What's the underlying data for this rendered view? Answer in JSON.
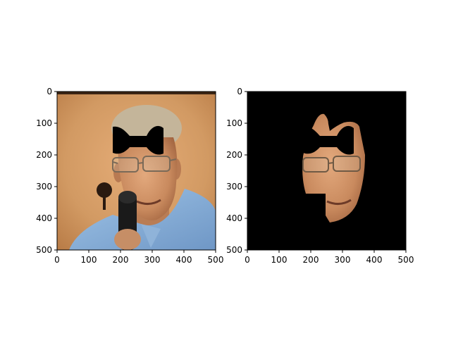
{
  "figure": {
    "panels": [
      {
        "id": "original-photo",
        "content": "photo of a man with glasses speaking into a microphone, with a black bow-tie-shaped mask over the forehead",
        "x_ticks": [
          "0",
          "100",
          "200",
          "300",
          "400",
          "500"
        ],
        "y_ticks": [
          "0",
          "100",
          "200",
          "300",
          "400",
          "500"
        ]
      },
      {
        "id": "face-segmentation",
        "content": "segmented face region on a black background with the same bow-tie-shaped mask",
        "x_ticks": [
          "0",
          "100",
          "200",
          "300",
          "400",
          "500"
        ],
        "y_ticks": [
          "0",
          "100",
          "200",
          "300",
          "400",
          "500"
        ]
      }
    ]
  }
}
